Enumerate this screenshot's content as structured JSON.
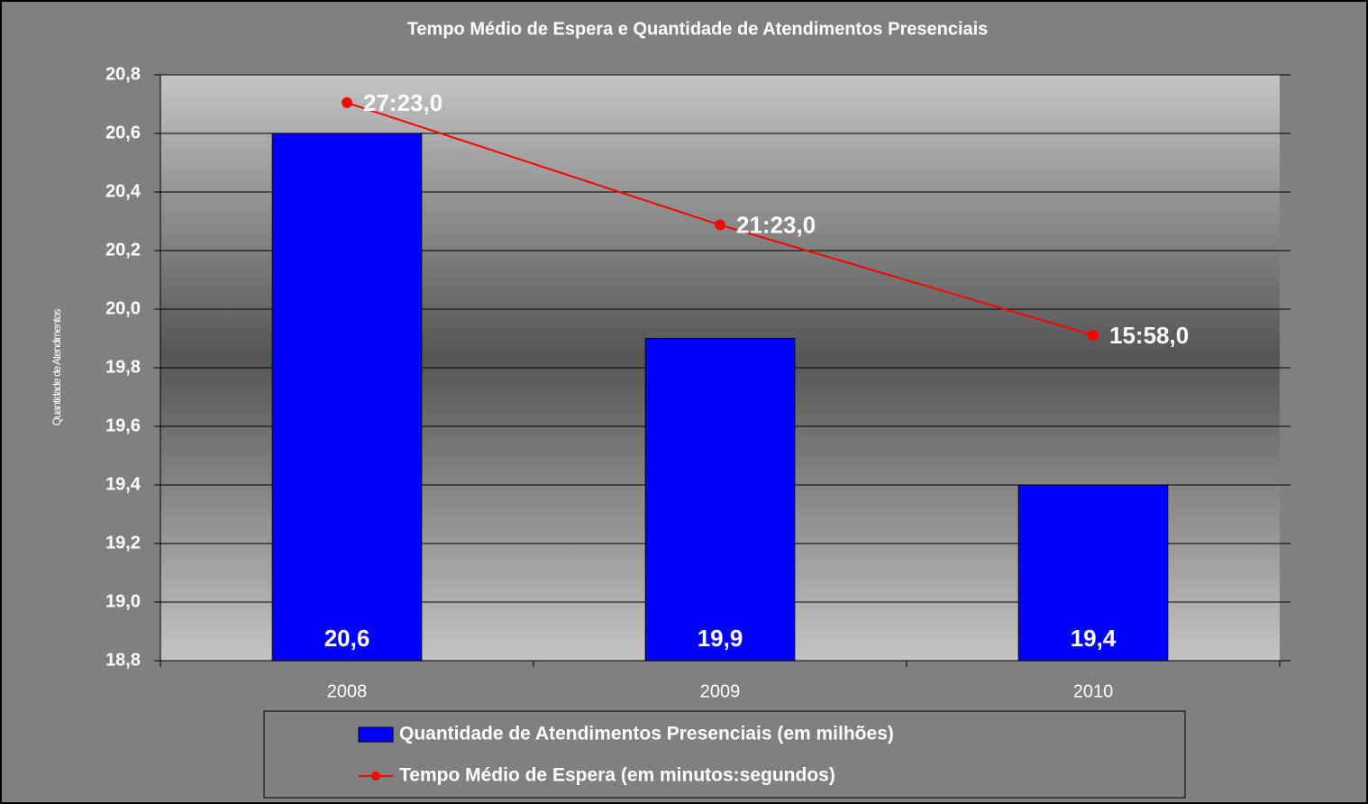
{
  "chart_data": {
    "type": "bar",
    "title": "Tempo Médio de Espera e Quantidade de Atendimentos Presenciais",
    "y_label": "Quantidade de Atendimentos",
    "categories": [
      "2008",
      "2009",
      "2010"
    ],
    "series": [
      {
        "name": "Quantidade de Atendimentos Presenciais (em milhões)",
        "color": "#0000ff",
        "values": [
          20.6,
          19.9,
          19.4
        ],
        "value_labels": [
          "20,6",
          "19,9",
          "19,4"
        ]
      },
      {
        "name": "Tempo Médio de Espera (em minutos:segundos)",
        "type": "line",
        "axis": "y2",
        "color": "#ff0000",
        "values": [
          27.383,
          21.383,
          15.967
        ],
        "value_labels": [
          "27:23,0",
          "21:23,0",
          "15:58,0"
        ]
      }
    ],
    "ylim": [
      18.8,
      20.8
    ],
    "yticks": [
      {
        "value": 18.8,
        "label": "18,8"
      },
      {
        "value": 19.0,
        "label": "19,0"
      },
      {
        "value": 19.2,
        "label": "19,2"
      },
      {
        "value": 19.4,
        "label": "19,4"
      },
      {
        "value": 19.6,
        "label": "19,6"
      },
      {
        "value": 19.8,
        "label": "19,8"
      },
      {
        "value": 20.0,
        "label": "20,0"
      },
      {
        "value": 20.2,
        "label": "20,2"
      },
      {
        "value": 20.4,
        "label": "20,4"
      },
      {
        "value": 20.6,
        "label": "20,6"
      },
      {
        "value": 20.8,
        "label": "20,8"
      }
    ],
    "y2lim": [
      0,
      28.75
    ],
    "grid": true
  }
}
